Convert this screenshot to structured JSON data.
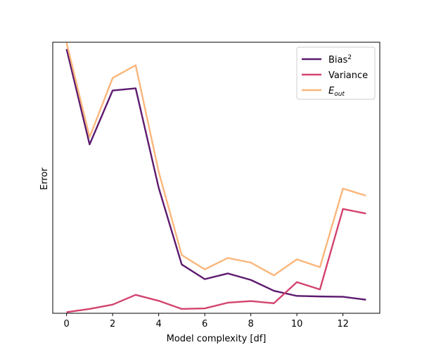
{
  "chart_data": {
    "type": "line",
    "xlabel": "Model complexity [df]",
    "ylabel": "Error",
    "xlim": [
      -0.6,
      13.6
    ],
    "ylim": [
      0,
      1
    ],
    "x_ticks": [
      0,
      2,
      4,
      6,
      8,
      10,
      12
    ],
    "y_ticks_shown": false,
    "grid": false,
    "legend_position": "upper-right",
    "x": [
      0,
      1,
      2,
      3,
      4,
      5,
      6,
      7,
      8,
      9,
      10,
      11,
      12,
      13
    ],
    "series": [
      {
        "name": "Bias",
        "name_superscript": "2",
        "color": "#5c1a6e",
        "values": [
          0.975,
          0.623,
          0.822,
          0.83,
          0.463,
          0.18,
          0.126,
          0.147,
          0.123,
          0.083,
          0.064,
          0.062,
          0.061,
          0.05
        ]
      },
      {
        "name": "Variance",
        "color": "#d3436e",
        "values": [
          0.004,
          0.016,
          0.032,
          0.068,
          0.046,
          0.016,
          0.018,
          0.039,
          0.045,
          0.037,
          0.115,
          0.088,
          0.385,
          0.368
        ]
      },
      {
        "name": "E",
        "name_subscript": "out",
        "color": "#fbb67b",
        "values": [
          0.998,
          0.65,
          0.868,
          0.915,
          0.522,
          0.215,
          0.162,
          0.204,
          0.187,
          0.14,
          0.199,
          0.17,
          0.46,
          0.434
        ]
      }
    ]
  }
}
